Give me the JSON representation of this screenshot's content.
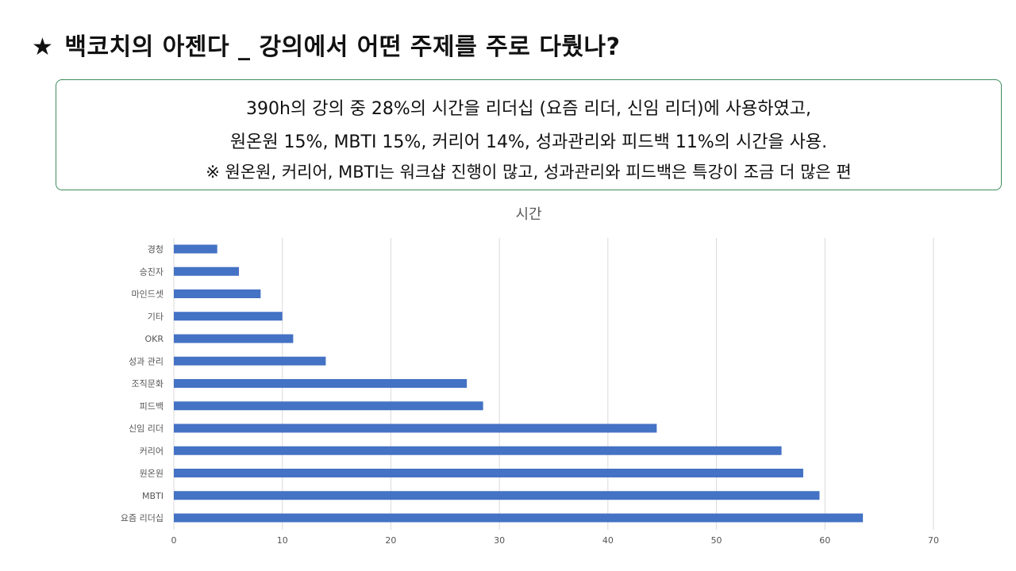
{
  "title": {
    "star": "★",
    "text": "백코치의 아젠다 _ 강의에서 어떤 주제를 주로 다뤘나?"
  },
  "summary": {
    "line1": "390h의 강의 중 28%의 시간을 리더십 (요즘 리더, 신임 리더)에 사용하였고,",
    "line2": "원온원 15%, MBTI 15%, 커리어 14%, 성과관리와 피드백 11%의 시간을 사용.",
    "line3": "※ 원온원, 커리어, MBTI는 워크샵 진행이 많고, 성과관리와 피드백은 특강이 조금 더 많은 편"
  },
  "colors": {
    "bar": "#4472c4",
    "box_border": "#3d8c5c",
    "grid": "#d9d9d9"
  },
  "chart_data": {
    "type": "bar",
    "orientation": "horizontal",
    "title": "시간",
    "categories": [
      "경청",
      "승진자",
      "마인드셋",
      "기타",
      "OKR",
      "성과 관리",
      "조직문화",
      "피드백",
      "신임 리더",
      "커리어",
      "원온원",
      "MBTI",
      "요즘 리더십"
    ],
    "values": [
      4,
      6,
      8,
      10,
      11,
      14,
      27,
      28.5,
      44.5,
      56,
      58,
      59.5,
      63.5
    ],
    "xlim": [
      0,
      70
    ],
    "xticks": [
      0,
      10,
      20,
      30,
      40,
      50,
      60,
      70
    ],
    "grid": true,
    "legend": false,
    "xlabel": "",
    "ylabel": ""
  }
}
